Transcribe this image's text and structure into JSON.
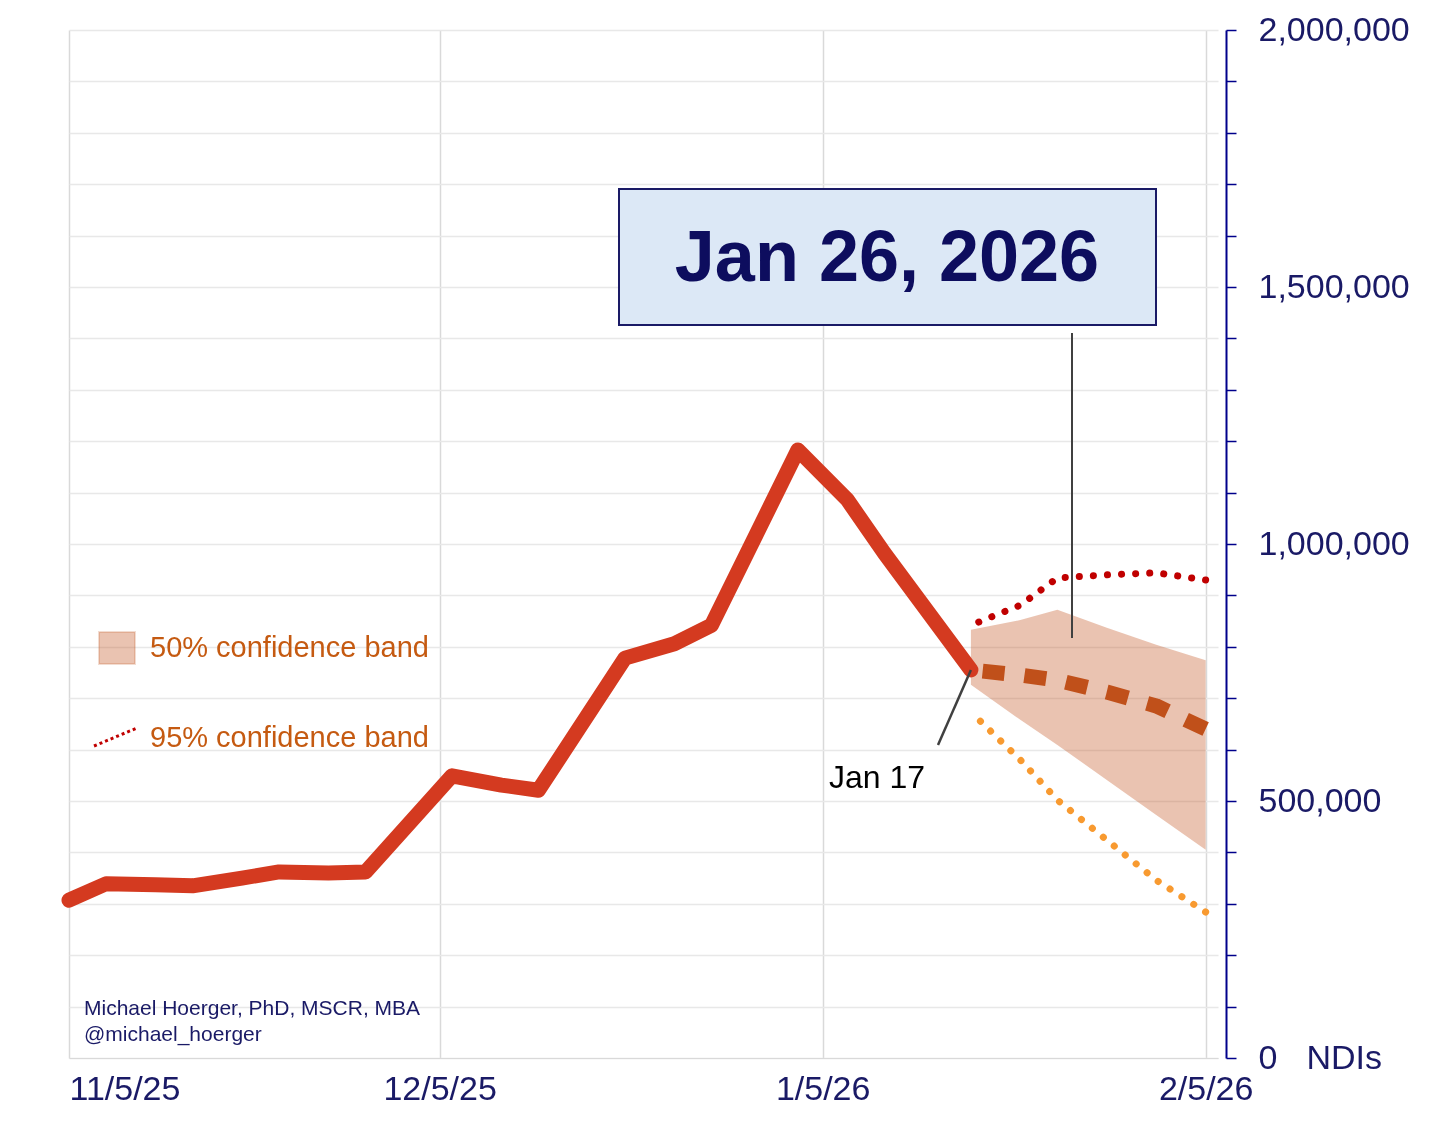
{
  "chart_data": {
    "type": "line",
    "xlim": [
      "2025-11-05",
      "2026-02-06"
    ],
    "xticks": [
      {
        "value": "2025-11-05",
        "label": "11/5/25"
      },
      {
        "value": "2025-12-05",
        "label": "12/5/25"
      },
      {
        "value": "2026-01-05",
        "label": "1/5/26"
      },
      {
        "value": "2026-02-05",
        "label": "2/5/26"
      }
    ],
    "ylim": [
      0,
      2000000
    ],
    "yticks": [
      {
        "value": 0,
        "label": "0"
      },
      {
        "value": 100000,
        "label": null
      },
      {
        "value": 200000,
        "label": null
      },
      {
        "value": 300000,
        "label": null
      },
      {
        "value": 400000,
        "label": null
      },
      {
        "value": 500000,
        "label": "500,000"
      },
      {
        "value": 600000,
        "label": null
      },
      {
        "value": 700000,
        "label": null
      },
      {
        "value": 800000,
        "label": null
      },
      {
        "value": 900000,
        "label": null
      },
      {
        "value": 1000000,
        "label": "1,000,000"
      },
      {
        "value": 1100000,
        "label": null
      },
      {
        "value": 1200000,
        "label": null
      },
      {
        "value": 1300000,
        "label": null
      },
      {
        "value": 1400000,
        "label": null
      },
      {
        "value": 1500000,
        "label": "1,500,000"
      },
      {
        "value": 1600000,
        "label": null
      },
      {
        "value": 1700000,
        "label": null
      },
      {
        "value": 1800000,
        "label": null
      },
      {
        "value": 1900000,
        "label": null
      },
      {
        "value": 2000000,
        "label": "2,000,000"
      }
    ],
    "ylabel": "NDIs",
    "grid": true,
    "legend": "left",
    "annotations": [
      "Jan 26, 2026",
      {
        "text": "Jan 17",
        "x": "2026-01-17",
        "y": 755000
      },
      "Michael Hoerger, PhD, MSCR, MBA",
      "@michael_hoerger"
    ],
    "series": [
      {
        "color": "#d43a20",
        "x": [
          "2025-11-05",
          "2025-11-08",
          "2025-11-12",
          "2025-11-15",
          "2025-11-19",
          "2025-11-22",
          "2025-11-26",
          "2025-11-29",
          "2025-12-06",
          "2025-12-10",
          "2025-12-13",
          "2025-12-20",
          "2025-12-24",
          "2025-12-27",
          "2026-01-03",
          "2026-01-07",
          "2026-01-10",
          "2026-01-17"
        ],
        "values": [
          307000,
          339000,
          337000,
          335000,
          350000,
          362000,
          360000,
          362000,
          549000,
          531000,
          521000,
          778000,
          806000,
          842000,
          1183000,
          1086000,
          982000,
          755000
        ]
      },
      {
        "name": "50% confidence band",
        "color": "#c0501a",
        "line_style": "dashed",
        "x": [
          "2026-01-17",
          "2026-01-21",
          "2026-01-24",
          "2026-01-28",
          "2026-02-01",
          "2026-02-05"
        ],
        "values": [
          755000,
          745000,
          735000,
          712000,
          685000,
          640000
        ],
        "lower": [
          726000,
          658000,
          609000,
          541000,
          473000,
          405000
        ],
        "upper": [
          833000,
          852000,
          872000,
          837000,
          804000,
          774000
        ]
      },
      {
        "name": "95% confidence band",
        "color": "#c00000",
        "line_style": "dotted",
        "x": [
          "2026-01-17",
          "2026-01-21",
          "2026-01-24",
          "2026-01-28",
          "2026-02-01",
          "2026-02-05"
        ],
        "values": [
          842000,
          881000,
          934000,
          940000,
          944000,
          930000
        ]
      },
      {
        "color": "#f89a30",
        "line_style": "dotted",
        "x": [
          "2026-01-17",
          "2026-01-21",
          "2026-01-24",
          "2026-01-28",
          "2026-02-01",
          "2026-02-05"
        ],
        "values": [
          673000,
          580000,
          502000,
          424000,
          346000,
          284000
        ]
      }
    ]
  }
}
